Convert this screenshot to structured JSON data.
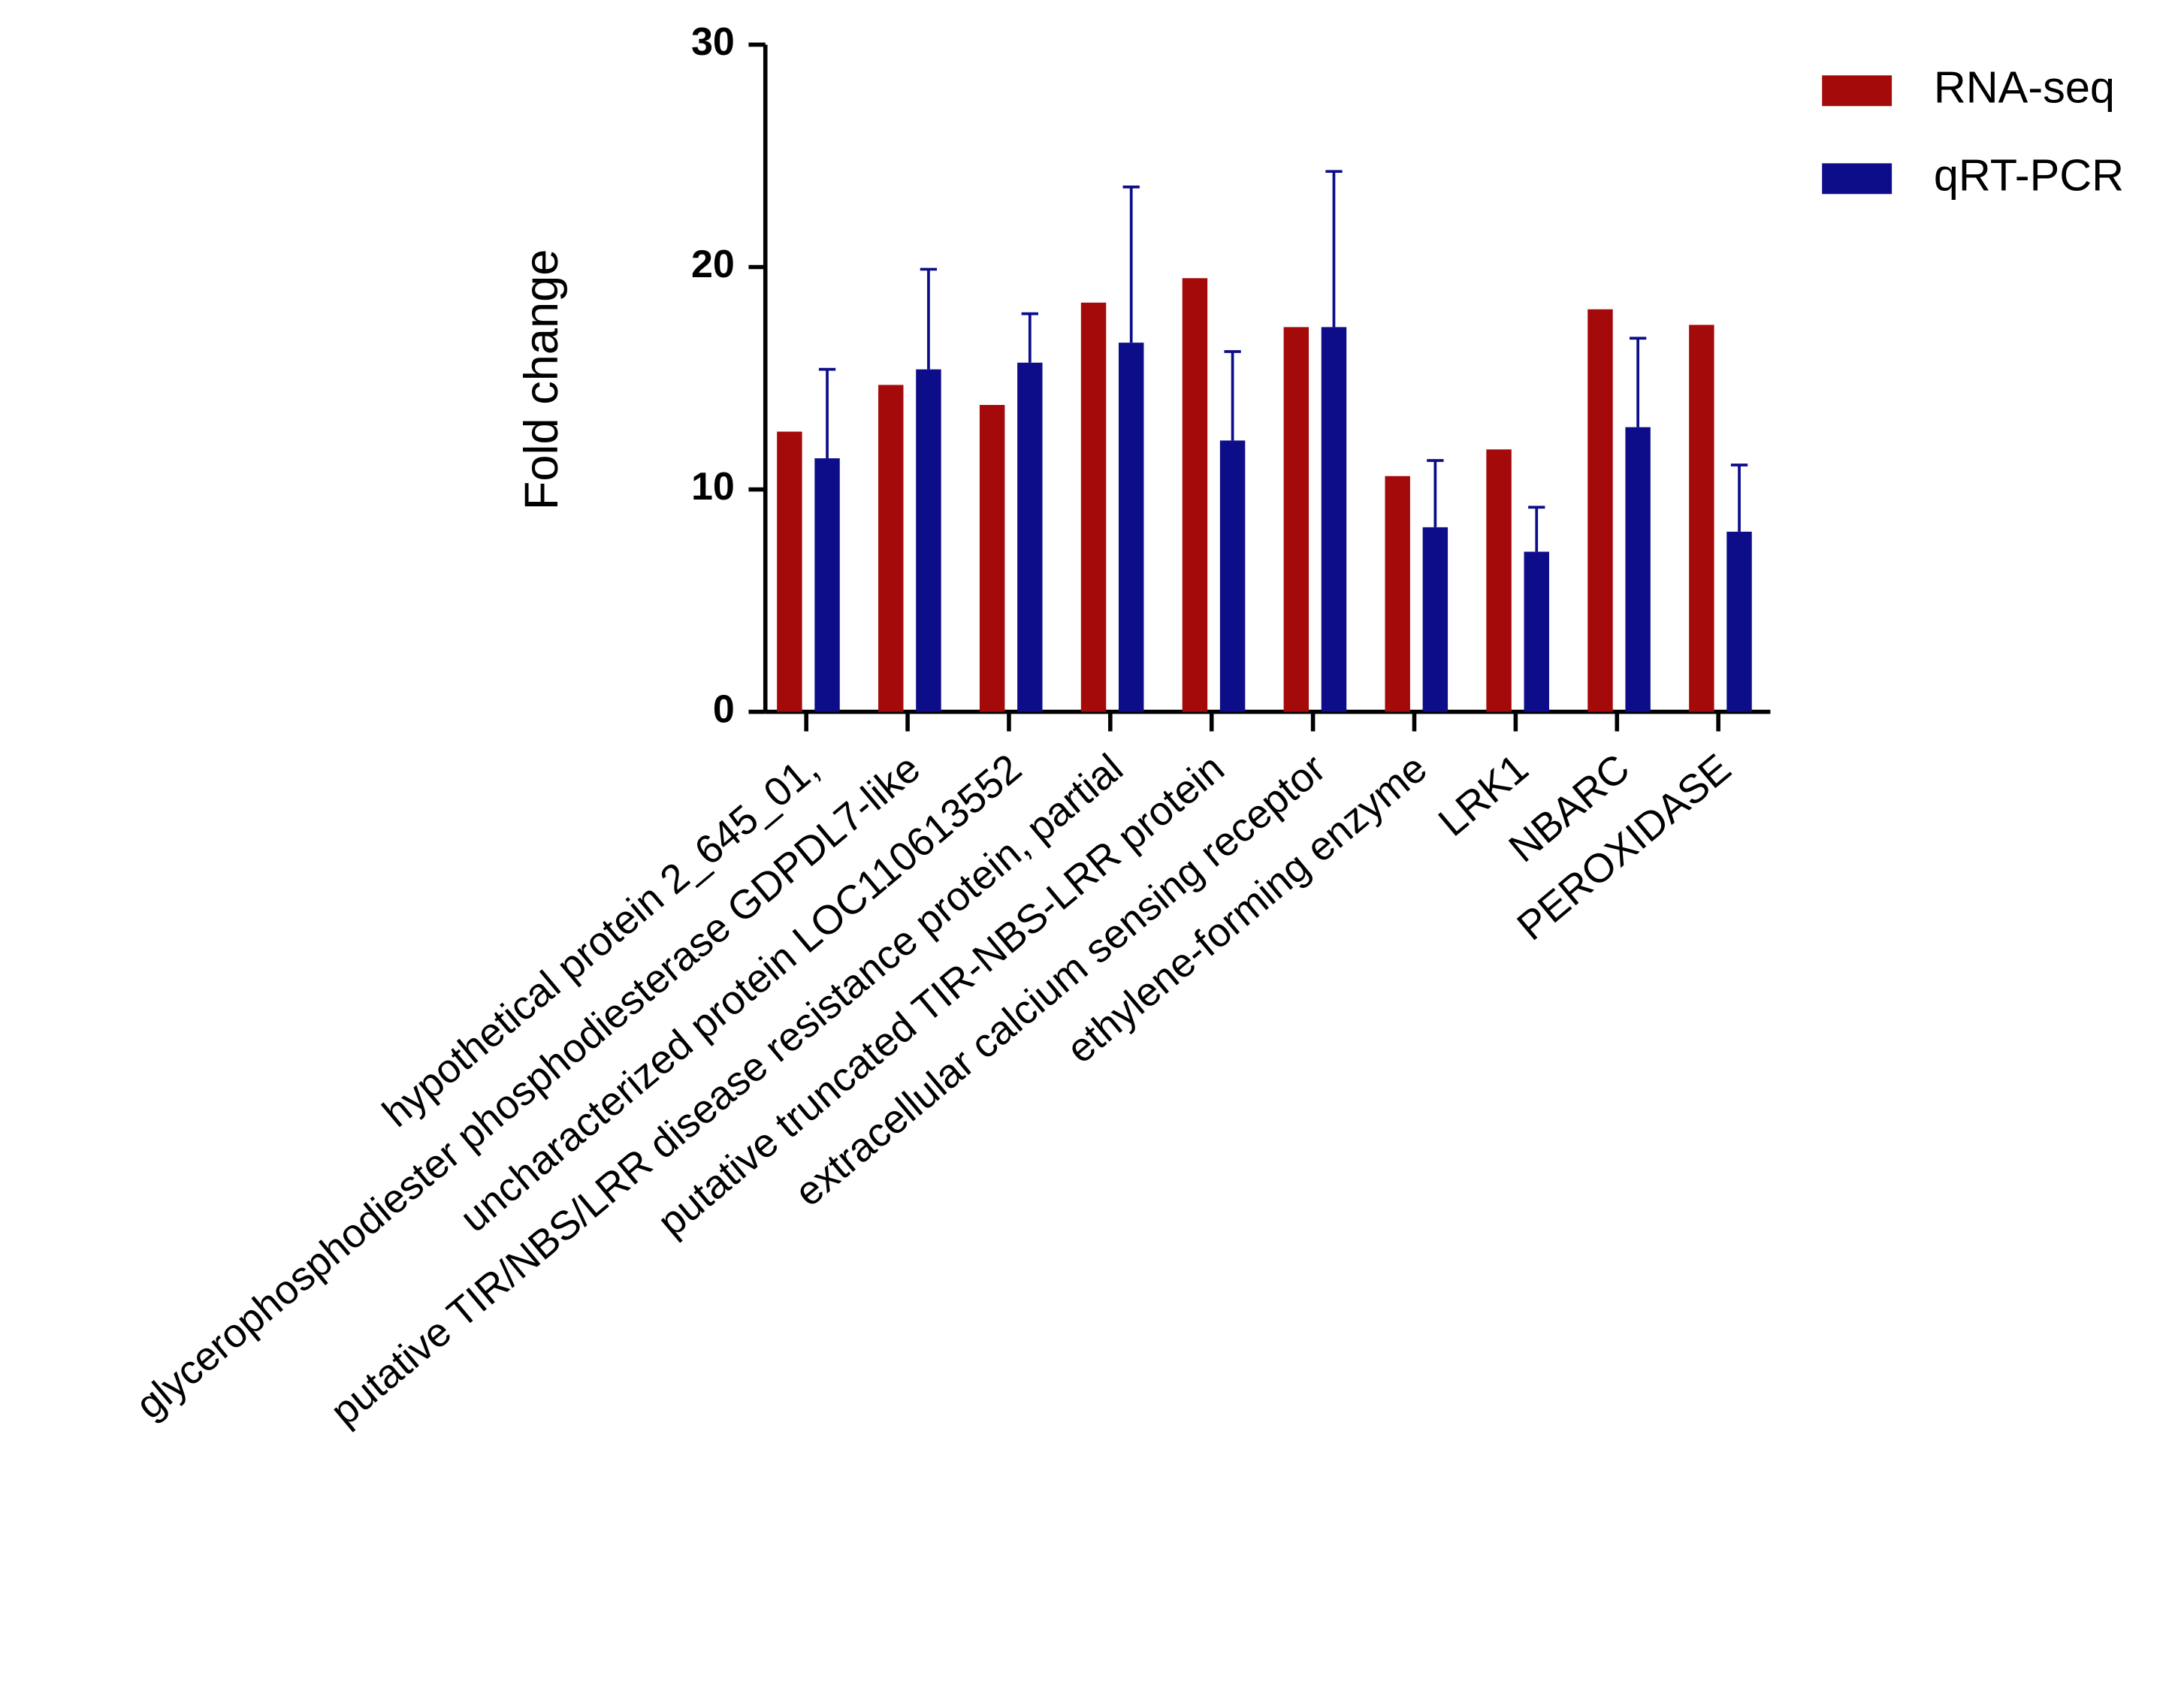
{
  "chart_data": {
    "type": "bar",
    "y_label": "Fold change",
    "categories": [
      "hypothetical protein 2_645_01,",
      "glycerophosphodiester phosphodiesterase GDPDL7-like",
      "uncharacterized protein LOC110613552",
      "putative TIR/NBS/LRR disease resistance protein, partial",
      "putative truncated TIR-NBS-LRR protein",
      "extracellular calcium sensing receptor",
      "ethylene-forming enzyme",
      "LRK1",
      "NBARC",
      "PEROXIDASE"
    ],
    "series": [
      {
        "name": "RNA-seq",
        "color": "#a50a0a",
        "values": [
          12.6,
          14.7,
          13.8,
          18.4,
          19.5,
          17.3,
          10.6,
          11.8,
          18.1,
          17.4
        ]
      },
      {
        "name": "qRT-PCR",
        "color": "#0d0d8a",
        "values": [
          11.4,
          15.4,
          15.7,
          16.6,
          12.2,
          17.3,
          8.3,
          7.2,
          12.8,
          8.1
        ],
        "errors": [
          4.0,
          4.5,
          2.2,
          7.0,
          4.0,
          7.0,
          3.0,
          2.0,
          4.0,
          3.0
        ]
      }
    ],
    "ylim": [
      0,
      30
    ],
    "yticks": [
      0,
      10,
      20,
      30
    ],
    "legend": "upper right"
  }
}
